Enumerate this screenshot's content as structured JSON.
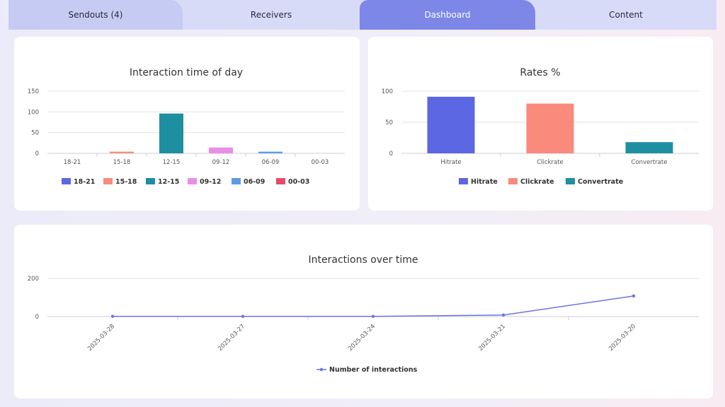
{
  "tabs": [
    {
      "label": "Sendouts (4)",
      "active": false
    },
    {
      "label": "Receivers",
      "active": false
    },
    {
      "label": "Dashboard",
      "active": true
    },
    {
      "label": "Content",
      "active": false
    }
  ],
  "colors": {
    "active_tab": "#7c87e8",
    "tab_bar": "#d8dbf7",
    "series_line": "#6a73e6"
  },
  "chart_data": [
    {
      "type": "bar",
      "title": "Interaction time of day",
      "categories": [
        "18-21",
        "15-18",
        "12-15",
        "09-12",
        "06-09",
        "00-03"
      ],
      "values": [
        0,
        4,
        96,
        14,
        4,
        0
      ],
      "colors": [
        "#5c67e3",
        "#f98a7c",
        "#1e8fa1",
        "#ea8de8",
        "#5b9be6",
        "#e84b6a"
      ],
      "yticks": [
        0,
        50,
        100,
        150
      ],
      "ylim": [
        0,
        150
      ],
      "grid": true,
      "legend": [
        "18-21",
        "15-18",
        "12-15",
        "09-12",
        "06-09",
        "00-03"
      ],
      "legend_position": "bottom"
    },
    {
      "type": "bar",
      "title": "Rates %",
      "categories": [
        "Hitrate",
        "Clickrate",
        "Convertrate"
      ],
      "values": [
        91,
        80,
        18
      ],
      "colors": [
        "#5c67e3",
        "#f98a7c",
        "#1e8fa1"
      ],
      "yticks": [
        0,
        50,
        100
      ],
      "ylim": [
        0,
        100
      ],
      "grid": true,
      "legend": [
        "Hitrate",
        "Clickrate",
        "Convertrate"
      ],
      "legend_position": "bottom"
    },
    {
      "type": "line",
      "title": "Interactions over time",
      "x": [
        "2025-03-28",
        "2025-03-27",
        "2025-03-24",
        "2025-03-21",
        "2025-03-20"
      ],
      "series": [
        {
          "name": "Number of interactions",
          "values": [
            1,
            1,
            1,
            8,
            108
          ]
        }
      ],
      "yticks": [
        0,
        200
      ],
      "ylim": [
        0,
        200
      ],
      "grid": true,
      "legend_position": "bottom"
    }
  ]
}
